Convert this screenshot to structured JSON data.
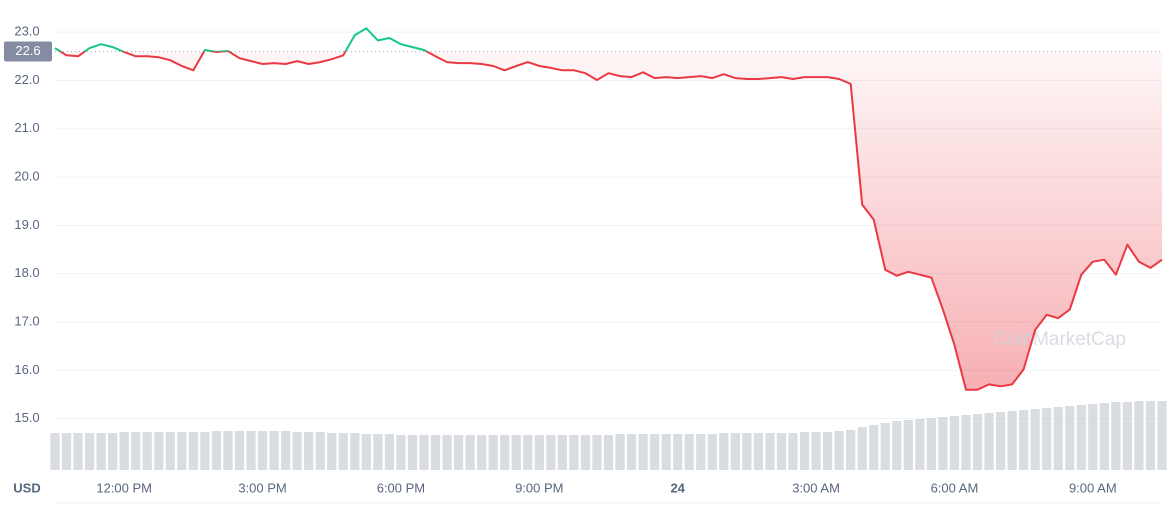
{
  "chart_data": {
    "type": "line",
    "currency": "USD",
    "watermark": "CoinMarketCap",
    "baseline": 22.6,
    "up_color": "#16c784",
    "down_color": "#ea3943",
    "volume_color": "#c9ced6",
    "x": [
      10.5,
      10.75,
      11,
      11.25,
      11.5,
      11.75,
      12,
      12.25,
      12.5,
      12.75,
      13,
      13.25,
      13.5,
      13.75,
      14,
      14.25,
      14.5,
      14.75,
      15,
      15.25,
      15.5,
      15.75,
      16,
      16.25,
      16.5,
      16.75,
      17,
      17.25,
      17.5,
      17.75,
      18,
      18.25,
      18.5,
      18.75,
      19,
      19.25,
      19.5,
      19.75,
      20,
      20.25,
      20.5,
      20.75,
      21,
      21.25,
      21.5,
      21.75,
      22,
      22.25,
      22.5,
      22.75,
      23,
      23.25,
      23.5,
      23.75,
      24,
      24.25,
      24.5,
      24.75,
      25,
      25.25,
      25.5,
      25.75,
      26,
      26.25,
      26.5,
      26.75,
      27,
      27.25,
      27.5,
      27.75,
      28,
      28.25,
      28.5,
      28.75,
      29,
      29.25,
      29.5,
      29.75,
      30,
      30.25,
      30.5,
      30.75,
      31,
      31.25,
      31.5,
      31.75,
      32,
      32.25,
      32.5,
      32.75,
      33,
      33.25,
      33.5,
      33.75,
      34,
      34.25,
      34.5
    ],
    "series": [
      {
        "values": [
          22.67,
          22.52,
          22.5,
          22.67,
          22.75,
          22.69,
          22.59,
          22.5,
          22.5,
          22.48,
          22.42,
          22.3,
          22.21,
          22.63,
          22.59,
          22.61,
          22.46,
          22.4,
          22.34,
          22.36,
          22.34,
          22.4,
          22.34,
          22.38,
          22.44,
          22.52,
          22.94,
          23.08,
          22.83,
          22.88,
          22.75,
          22.69,
          22.63,
          22.5,
          22.38,
          22.36,
          22.36,
          22.34,
          22.3,
          22.21,
          22.3,
          22.38,
          22.3,
          22.26,
          22.21,
          22.21,
          22.15,
          22.01,
          22.15,
          22.09,
          22.07,
          22.17,
          22.05,
          22.07,
          22.05,
          22.07,
          22.09,
          22.05,
          22.13,
          22.05,
          22.03,
          22.03,
          22.05,
          22.07,
          22.03,
          22.07,
          22.07,
          22.07,
          22.03,
          21.93,
          19.43,
          19.12,
          18.08,
          17.96,
          18.04,
          17.98,
          17.92,
          17.26,
          16.53,
          15.6,
          15.6,
          15.71,
          15.67,
          15.71,
          16.02,
          16.84,
          17.15,
          17.08,
          17.26,
          17.98,
          18.25,
          18.29,
          17.98,
          18.6,
          18.25,
          18.12,
          18.29
        ]
      },
      {
        "axis": "y2",
        "values": [
          37,
          37,
          37,
          37,
          37,
          37,
          38,
          38,
          38,
          38,
          38,
          38,
          38,
          38,
          39,
          39,
          39,
          39,
          39,
          39,
          39,
          38,
          38,
          38,
          37,
          37,
          37,
          36,
          36,
          36,
          35,
          35,
          35,
          35,
          35,
          35,
          35,
          35,
          35,
          35,
          35,
          35,
          35,
          35,
          35,
          35,
          35,
          35,
          35,
          36,
          36,
          36,
          36,
          36,
          36,
          36,
          36,
          36,
          37,
          37,
          37,
          37,
          37,
          37,
          37,
          38,
          38,
          38,
          39,
          40,
          43,
          45,
          47,
          49,
          50,
          51,
          52,
          53,
          54,
          55,
          56,
          57,
          58,
          59,
          60,
          61,
          62,
          63,
          64,
          65,
          66,
          67,
          68,
          68,
          69,
          69,
          69
        ]
      }
    ],
    "xlim": [
      10.5,
      34.5
    ],
    "xticks": [
      {
        "value": 12,
        "label": "12:00 PM"
      },
      {
        "value": 15,
        "label": "3:00 PM"
      },
      {
        "value": 18,
        "label": "6:00 PM"
      },
      {
        "value": 21,
        "label": "9:00 PM"
      },
      24,
      {
        "value": 27,
        "label": "3:00 AM"
      },
      {
        "value": 30,
        "label": "6:00 AM"
      },
      {
        "value": 33,
        "label": "9:00 AM"
      }
    ],
    "ylim": [
      14,
      23.5
    ],
    "yticks": [
      {
        "value": 15,
        "label": "15.0"
      },
      {
        "value": 16,
        "label": "16.0"
      },
      {
        "value": 17,
        "label": "17.0"
      },
      {
        "value": 18,
        "label": "18.0"
      },
      {
        "value": 19,
        "label": "19.0"
      },
      {
        "value": 20,
        "label": "20.0"
      },
      {
        "value": 21,
        "label": "21.0"
      },
      {
        "value": 22,
        "label": "22.0"
      },
      {
        "value": 23,
        "label": "23.0"
      }
    ],
    "y2lim": [
      0,
      100
    ],
    "grid": true
  }
}
